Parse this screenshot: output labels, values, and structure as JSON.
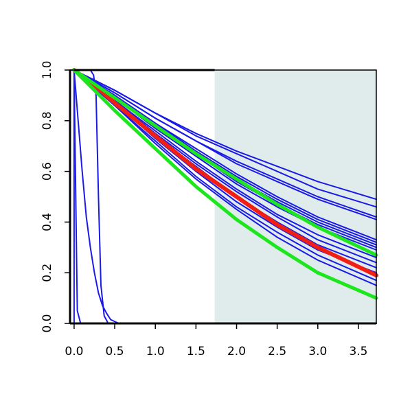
{
  "chart_data": {
    "type": "line",
    "title": "",
    "xlabel": "",
    "ylabel": "",
    "xlim": [
      -0.05,
      3.72
    ],
    "ylim": [
      0.0,
      1.0
    ],
    "grid": false,
    "legend": "none",
    "x_ticks": [
      "0.0",
      "0.5",
      "1.0",
      "1.5",
      "2.0",
      "2.5",
      "3.0",
      "3.5"
    ],
    "x_tick_values": [
      0.0,
      0.5,
      1.0,
      1.5,
      2.0,
      2.5,
      3.0,
      3.5
    ],
    "y_ticks": [
      "0.0",
      "0.2",
      "0.4",
      "0.6",
      "0.8",
      "1.0"
    ],
    "y_tick_values": [
      0.0,
      0.2,
      0.4,
      0.6,
      0.8,
      1.0
    ],
    "shaded_region": {
      "x_from": 1.73,
      "x_to": 3.72,
      "color": "#e0ecec"
    },
    "colors": {
      "blue": "#1a1ae6",
      "green": "#1ee61e",
      "red": "#f01e14",
      "reference": "#000000"
    },
    "series": [
      {
        "color": "blue",
        "points": [
          [
            -0.05,
            1.0
          ],
          [
            0.0,
            1.0
          ],
          [
            0.0,
            0.0
          ],
          [
            3.72,
            0.0
          ]
        ]
      },
      {
        "color": "blue",
        "points": [
          [
            -0.05,
            1.0
          ],
          [
            0.0,
            1.0
          ],
          [
            0.02,
            0.5
          ],
          [
            0.04,
            0.05
          ],
          [
            0.08,
            0.0
          ],
          [
            3.72,
            0.0
          ]
        ]
      },
      {
        "color": "blue",
        "points": [
          [
            0.0,
            1.0
          ],
          [
            0.05,
            0.8
          ],
          [
            0.1,
            0.6
          ],
          [
            0.15,
            0.42
          ],
          [
            0.2,
            0.3
          ],
          [
            0.25,
            0.2
          ],
          [
            0.3,
            0.12
          ],
          [
            0.35,
            0.07
          ],
          [
            0.4,
            0.04
          ],
          [
            0.45,
            0.015
          ],
          [
            0.55,
            0.0
          ],
          [
            3.72,
            0.0
          ]
        ]
      },
      {
        "color": "blue",
        "points": [
          [
            0.0,
            1.0
          ],
          [
            0.2,
            1.0
          ],
          [
            0.24,
            0.98
          ],
          [
            0.27,
            0.9
          ],
          [
            0.3,
            0.5
          ],
          [
            0.33,
            0.15
          ],
          [
            0.37,
            0.03
          ],
          [
            0.42,
            0.0
          ],
          [
            3.72,
            0.0
          ]
        ]
      },
      {
        "color": "blue",
        "points": [
          [
            0.0,
            1.0
          ],
          [
            0.5,
            0.92
          ],
          [
            1.0,
            0.83
          ],
          [
            1.5,
            0.75
          ],
          [
            2.0,
            0.68
          ],
          [
            2.5,
            0.62
          ],
          [
            3.0,
            0.56
          ],
          [
            3.72,
            0.49
          ]
        ]
      },
      {
        "color": "blue",
        "points": [
          [
            0.0,
            1.0
          ],
          [
            0.5,
            0.92
          ],
          [
            1.0,
            0.83
          ],
          [
            1.5,
            0.74
          ],
          [
            2.0,
            0.67
          ],
          [
            2.5,
            0.6
          ],
          [
            3.0,
            0.53
          ],
          [
            3.72,
            0.46
          ]
        ]
      },
      {
        "color": "blue",
        "points": [
          [
            0.0,
            1.0
          ],
          [
            0.5,
            0.91
          ],
          [
            1.0,
            0.81
          ],
          [
            1.5,
            0.72
          ],
          [
            2.0,
            0.64
          ],
          [
            2.5,
            0.57
          ],
          [
            3.0,
            0.5
          ],
          [
            3.72,
            0.42
          ]
        ]
      },
      {
        "color": "blue",
        "points": [
          [
            0.0,
            1.0
          ],
          [
            0.5,
            0.91
          ],
          [
            1.0,
            0.81
          ],
          [
            1.5,
            0.72
          ],
          [
            2.0,
            0.63
          ],
          [
            2.5,
            0.56
          ],
          [
            3.0,
            0.49
          ],
          [
            3.72,
            0.41
          ]
        ]
      },
      {
        "color": "blue",
        "points": [
          [
            0.0,
            1.0
          ],
          [
            0.5,
            0.9
          ],
          [
            1.0,
            0.79
          ],
          [
            1.5,
            0.69
          ],
          [
            2.0,
            0.59
          ],
          [
            2.5,
            0.5
          ],
          [
            3.0,
            0.42
          ],
          [
            3.72,
            0.33
          ]
        ]
      },
      {
        "color": "blue",
        "points": [
          [
            0.0,
            1.0
          ],
          [
            0.5,
            0.9
          ],
          [
            1.0,
            0.79
          ],
          [
            1.5,
            0.68
          ],
          [
            2.0,
            0.58
          ],
          [
            2.5,
            0.49
          ],
          [
            3.0,
            0.41
          ],
          [
            3.72,
            0.32
          ]
        ]
      },
      {
        "color": "blue",
        "points": [
          [
            0.0,
            1.0
          ],
          [
            0.5,
            0.9
          ],
          [
            1.0,
            0.78
          ],
          [
            1.5,
            0.67
          ],
          [
            2.0,
            0.57
          ],
          [
            2.5,
            0.48
          ],
          [
            3.0,
            0.4
          ],
          [
            3.72,
            0.31
          ]
        ]
      },
      {
        "color": "blue",
        "points": [
          [
            0.0,
            1.0
          ],
          [
            0.5,
            0.89
          ],
          [
            1.0,
            0.78
          ],
          [
            1.5,
            0.67
          ],
          [
            2.0,
            0.56
          ],
          [
            2.5,
            0.47
          ],
          [
            3.0,
            0.39
          ],
          [
            3.72,
            0.3
          ]
        ]
      },
      {
        "color": "blue",
        "points": [
          [
            0.0,
            1.0
          ],
          [
            0.5,
            0.89
          ],
          [
            1.0,
            0.77
          ],
          [
            1.5,
            0.66
          ],
          [
            2.0,
            0.55
          ],
          [
            2.5,
            0.46
          ],
          [
            3.0,
            0.38
          ],
          [
            3.72,
            0.29
          ]
        ]
      },
      {
        "color": "blue",
        "points": [
          [
            0.0,
            1.0
          ],
          [
            0.5,
            0.88
          ],
          [
            1.0,
            0.76
          ],
          [
            1.5,
            0.64
          ],
          [
            2.0,
            0.53
          ],
          [
            2.5,
            0.43
          ],
          [
            3.0,
            0.35
          ],
          [
            3.72,
            0.26
          ]
        ]
      },
      {
        "color": "blue",
        "points": [
          [
            0.0,
            1.0
          ],
          [
            0.5,
            0.88
          ],
          [
            1.0,
            0.75
          ],
          [
            1.5,
            0.63
          ],
          [
            2.0,
            0.52
          ],
          [
            2.5,
            0.42
          ],
          [
            3.0,
            0.33
          ],
          [
            3.72,
            0.24
          ]
        ]
      },
      {
        "color": "blue",
        "points": [
          [
            0.0,
            1.0
          ],
          [
            0.5,
            0.88
          ],
          [
            1.0,
            0.74
          ],
          [
            1.5,
            0.62
          ],
          [
            2.0,
            0.5
          ],
          [
            2.5,
            0.4
          ],
          [
            3.0,
            0.31
          ],
          [
            3.72,
            0.22
          ]
        ]
      },
      {
        "color": "blue",
        "points": [
          [
            0.0,
            1.0
          ],
          [
            0.5,
            0.87
          ],
          [
            1.0,
            0.73
          ],
          [
            1.5,
            0.6
          ],
          [
            2.0,
            0.48
          ],
          [
            2.5,
            0.38
          ],
          [
            3.0,
            0.29
          ],
          [
            3.72,
            0.2
          ]
        ]
      },
      {
        "color": "blue",
        "points": [
          [
            0.0,
            1.0
          ],
          [
            0.5,
            0.86
          ],
          [
            1.0,
            0.72
          ],
          [
            1.5,
            0.58
          ],
          [
            2.0,
            0.46
          ],
          [
            2.5,
            0.36
          ],
          [
            3.0,
            0.27
          ],
          [
            3.72,
            0.17
          ]
        ]
      },
      {
        "color": "blue",
        "points": [
          [
            0.0,
            1.0
          ],
          [
            0.5,
            0.86
          ],
          [
            1.0,
            0.71
          ],
          [
            1.5,
            0.57
          ],
          [
            2.0,
            0.45
          ],
          [
            2.5,
            0.34
          ],
          [
            3.0,
            0.25
          ],
          [
            3.72,
            0.15
          ]
        ]
      },
      {
        "color": "red",
        "width": 6,
        "points": [
          [
            0.0,
            1.0
          ],
          [
            0.25,
            0.94
          ],
          [
            0.5,
            0.87
          ],
          [
            1.0,
            0.74
          ],
          [
            1.5,
            0.61
          ],
          [
            2.0,
            0.5
          ],
          [
            2.5,
            0.39
          ],
          [
            3.0,
            0.3
          ],
          [
            3.72,
            0.19
          ]
        ]
      },
      {
        "color": "green",
        "width": 5,
        "points": [
          [
            0.0,
            1.0
          ],
          [
            0.5,
            0.89
          ],
          [
            1.0,
            0.78
          ],
          [
            1.5,
            0.67
          ],
          [
            2.0,
            0.57
          ],
          [
            2.5,
            0.47
          ],
          [
            3.0,
            0.38
          ],
          [
            3.72,
            0.27
          ]
        ]
      },
      {
        "color": "green",
        "width": 5,
        "points": [
          [
            0.0,
            1.0
          ],
          [
            0.5,
            0.84
          ],
          [
            1.0,
            0.69
          ],
          [
            1.5,
            0.54
          ],
          [
            2.0,
            0.41
          ],
          [
            2.5,
            0.3
          ],
          [
            3.0,
            0.2
          ],
          [
            3.72,
            0.1
          ]
        ]
      }
    ]
  }
}
